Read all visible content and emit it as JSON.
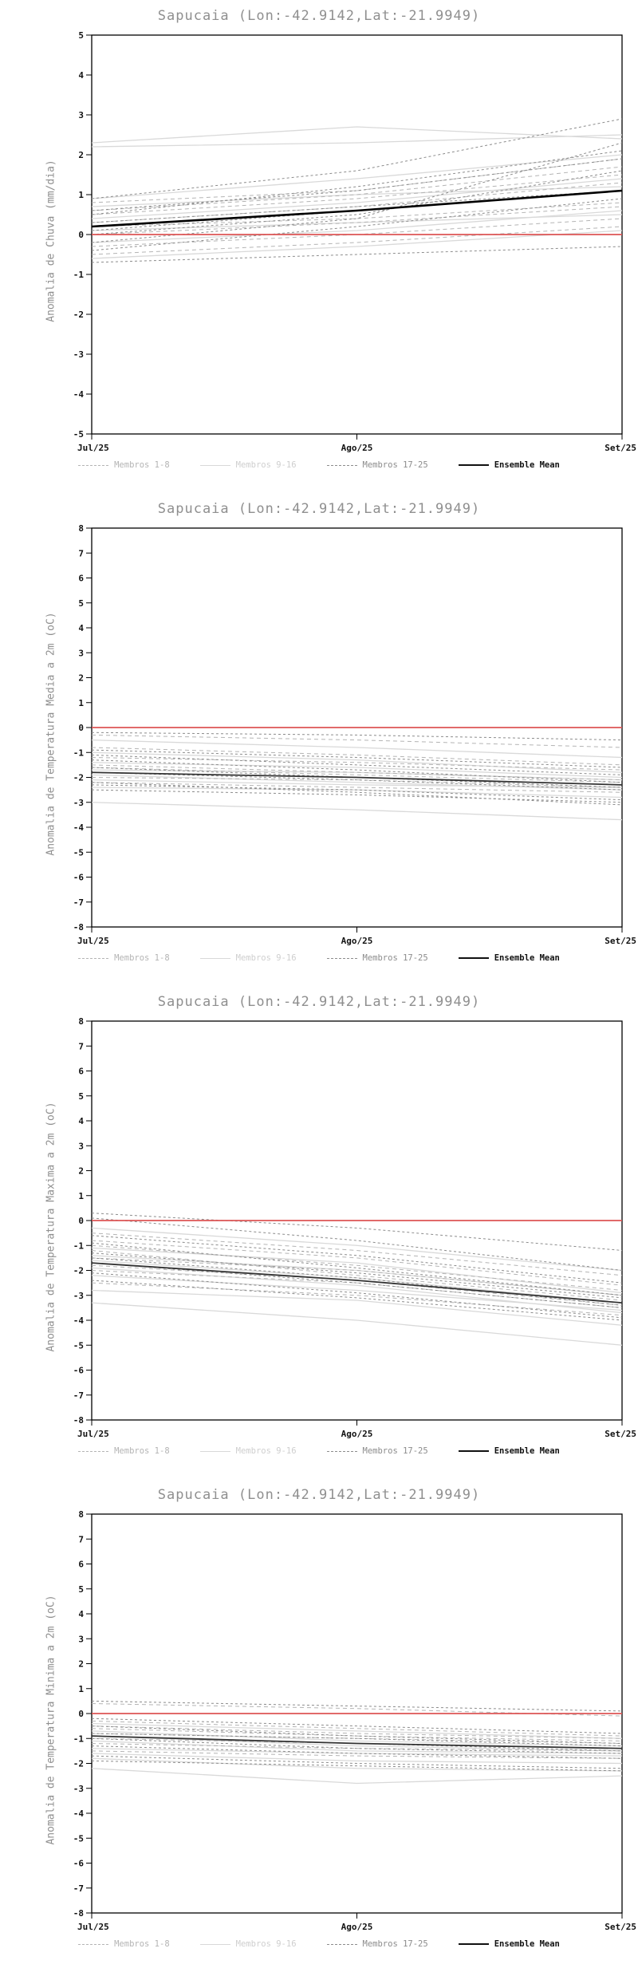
{
  "page": {
    "title": "Sapucaia (Lon:-42.9142,Lat:-21.9949)"
  },
  "x_axis": {
    "labels": [
      "Jul/25",
      "Ago/25",
      "Set/25"
    ]
  },
  "legend": {
    "items": [
      {
        "label": "Membros 1-8",
        "style": "members_1_8"
      },
      {
        "label": "Membros 9-16",
        "style": "members_9_16"
      },
      {
        "label": "Membros 17-25",
        "style": "members_17_25"
      },
      {
        "label": "Ensemble Mean",
        "style": "ensemble_mean"
      }
    ]
  },
  "line_styles": {
    "members_1_8": {
      "color": "#b4b4b4",
      "dash": "5 4",
      "width": 1,
      "label_color": "#b4b4b4"
    },
    "members_9_16": {
      "color": "#d9d9d9",
      "dash": "",
      "width": 1.3,
      "label_color": "#cfcfcf"
    },
    "members_17_25": {
      "color": "#8c8c8c",
      "dash": "3 3",
      "width": 1,
      "label_color": "#8c8c8c"
    },
    "ensemble_mean": {
      "color": "#111111",
      "dash": "",
      "width": 2.2,
      "label_color": "#111111"
    },
    "zero_line": {
      "color": "#dd5555",
      "width": 1.8
    }
  },
  "chart_data": [
    {
      "type": "line",
      "title": "Sapucaia (Lon:-42.9142,Lat:-21.9949)",
      "ylabel": "Anomalia de Chuva (mm/dia)",
      "ylim": [
        -5,
        5
      ],
      "ytick_step": 1,
      "x": [
        "Jul/25",
        "Ago/25",
        "Set/25"
      ],
      "zero_line": 0,
      "mean_color": "#000000",
      "mean_width": 2.6,
      "ensemble_mean": [
        0.2,
        0.6,
        1.1
      ],
      "members": [
        {
          "group": "members_1_8",
          "values": [
            0.5,
            0.9,
            1.5
          ]
        },
        {
          "group": "members_1_8",
          "values": [
            0.2,
            0.4,
            0.8
          ]
        },
        {
          "group": "members_1_8",
          "values": [
            -0.3,
            0.0,
            0.4
          ]
        },
        {
          "group": "members_1_8",
          "values": [
            0.8,
            1.1,
            1.9
          ]
        },
        {
          "group": "members_1_8",
          "values": [
            -0.5,
            -0.2,
            0.2
          ]
        },
        {
          "group": "members_1_8",
          "values": [
            0.3,
            0.7,
            1.3
          ]
        },
        {
          "group": "members_1_8",
          "values": [
            0.0,
            0.3,
            0.7
          ]
        },
        {
          "group": "members_1_8",
          "values": [
            0.6,
            1.0,
            1.7
          ]
        },
        {
          "group": "members_9_16",
          "values": [
            2.2,
            2.3,
            2.5
          ]
        },
        {
          "group": "members_9_16",
          "values": [
            2.3,
            2.7,
            2.4
          ]
        },
        {
          "group": "members_9_16",
          "values": [
            0.9,
            1.4,
            2.0
          ]
        },
        {
          "group": "members_9_16",
          "values": [
            -0.6,
            -0.3,
            0.1
          ]
        },
        {
          "group": "members_9_16",
          "values": [
            0.4,
            0.8,
            1.4
          ]
        },
        {
          "group": "members_9_16",
          "values": [
            0.1,
            0.3,
            0.5
          ]
        },
        {
          "group": "members_9_16",
          "values": [
            -0.2,
            0.1,
            0.6
          ]
        },
        {
          "group": "members_9_16",
          "values": [
            0.7,
            1.0,
            1.2
          ]
        },
        {
          "group": "members_17_25",
          "values": [
            -0.7,
            -0.5,
            -0.3
          ]
        },
        {
          "group": "members_17_25",
          "values": [
            0.1,
            0.6,
            1.1
          ]
        },
        {
          "group": "members_17_25",
          "values": [
            0.5,
            1.2,
            2.1
          ]
        },
        {
          "group": "members_17_25",
          "values": [
            -0.4,
            0.2,
            0.9
          ]
        },
        {
          "group": "members_17_25",
          "values": [
            0.9,
            1.6,
            2.9
          ]
        },
        {
          "group": "members_17_25",
          "values": [
            0.3,
            0.7,
            1.1
          ]
        },
        {
          "group": "members_17_25",
          "values": [
            0.0,
            0.5,
            1.6
          ]
        },
        {
          "group": "members_17_25",
          "values": [
            -0.2,
            0.4,
            2.3
          ]
        },
        {
          "group": "members_17_25",
          "values": [
            0.6,
            1.1,
            1.9
          ]
        }
      ]
    },
    {
      "type": "line",
      "title": "Sapucaia (Lon:-42.9142,Lat:-21.9949)",
      "ylabel": "Anomalia de Temperatura Media a 2m (oC)",
      "ylim": [
        -8,
        8
      ],
      "ytick_step": 1,
      "x": [
        "Jul/25",
        "Ago/25",
        "Set/25"
      ],
      "zero_line": 0,
      "mean_color": "#333333",
      "mean_width": 1.8,
      "ensemble_mean": [
        -1.8,
        -2.0,
        -2.3
      ],
      "members": [
        {
          "group": "members_1_8",
          "values": [
            -0.3,
            -0.5,
            -0.8
          ]
        },
        {
          "group": "members_1_8",
          "values": [
            -1.2,
            -1.4,
            -1.7
          ]
        },
        {
          "group": "members_1_8",
          "values": [
            -1.8,
            -2.0,
            -2.3
          ]
        },
        {
          "group": "members_1_8",
          "values": [
            -2.2,
            -2.4,
            -2.6
          ]
        },
        {
          "group": "members_1_8",
          "values": [
            -1.5,
            -1.8,
            -2.1
          ]
        },
        {
          "group": "members_1_8",
          "values": [
            -0.8,
            -1.1,
            -1.5
          ]
        },
        {
          "group": "members_1_8",
          "values": [
            -2.0,
            -2.1,
            -2.4
          ]
        },
        {
          "group": "members_1_8",
          "values": [
            -1.6,
            -1.9,
            -2.2
          ]
        },
        {
          "group": "members_9_16",
          "values": [
            -3.0,
            -3.3,
            -3.7
          ]
        },
        {
          "group": "members_9_16",
          "values": [
            -1.0,
            -1.3,
            -1.8
          ]
        },
        {
          "group": "members_9_16",
          "values": [
            -2.4,
            -2.5,
            -2.8
          ]
        },
        {
          "group": "members_9_16",
          "values": [
            -1.4,
            -1.6,
            -2.0
          ]
        },
        {
          "group": "members_9_16",
          "values": [
            -0.5,
            -0.8,
            -1.2
          ]
        },
        {
          "group": "members_9_16",
          "values": [
            -1.9,
            -2.2,
            -2.5
          ]
        },
        {
          "group": "members_9_16",
          "values": [
            -2.1,
            -2.3,
            -2.4
          ]
        },
        {
          "group": "members_9_16",
          "values": [
            -1.7,
            -1.8,
            -2.1
          ]
        },
        {
          "group": "members_17_25",
          "values": [
            -0.2,
            -0.3,
            -0.5
          ]
        },
        {
          "group": "members_17_25",
          "values": [
            -1.1,
            -1.5,
            -1.9
          ]
        },
        {
          "group": "members_17_25",
          "values": [
            -2.3,
            -2.5,
            -2.9
          ]
        },
        {
          "group": "members_17_25",
          "values": [
            -1.3,
            -1.7,
            -2.2
          ]
        },
        {
          "group": "members_17_25",
          "values": [
            -2.5,
            -2.7,
            -3.0
          ]
        },
        {
          "group": "members_17_25",
          "values": [
            -1.6,
            -2.0,
            -2.4
          ]
        },
        {
          "group": "members_17_25",
          "values": [
            -0.9,
            -1.2,
            -1.6
          ]
        },
        {
          "group": "members_17_25",
          "values": [
            -2.2,
            -2.6,
            -3.1
          ]
        },
        {
          "group": "members_17_25",
          "values": [
            -1.8,
            -2.1,
            -2.5
          ]
        }
      ]
    },
    {
      "type": "line",
      "title": "Sapucaia (Lon:-42.9142,Lat:-21.9949)",
      "ylabel": "Anomalia de Temperatura Maxima a 2m (oC)",
      "ylim": [
        -8,
        8
      ],
      "ytick_step": 1,
      "x": [
        "Jul/25",
        "Ago/25",
        "Set/25"
      ],
      "zero_line": 0,
      "mean_color": "#333333",
      "mean_width": 1.8,
      "ensemble_mean": [
        -1.7,
        -2.4,
        -3.3
      ],
      "members": [
        {
          "group": "members_1_8",
          "values": [
            -0.5,
            -1.2,
            -2.2
          ]
        },
        {
          "group": "members_1_8",
          "values": [
            -1.5,
            -2.0,
            -3.0
          ]
        },
        {
          "group": "members_1_8",
          "values": [
            -2.0,
            -2.5,
            -3.5
          ]
        },
        {
          "group": "members_1_8",
          "values": [
            -1.0,
            -1.8,
            -2.8
          ]
        },
        {
          "group": "members_1_8",
          "values": [
            -2.5,
            -3.0,
            -3.8
          ]
        },
        {
          "group": "members_1_8",
          "values": [
            -1.2,
            -2.2,
            -3.2
          ]
        },
        {
          "group": "members_1_8",
          "values": [
            -1.8,
            -2.4,
            -3.4
          ]
        },
        {
          "group": "members_1_8",
          "values": [
            -0.8,
            -1.5,
            -2.6
          ]
        },
        {
          "group": "members_9_16",
          "values": [
            -3.3,
            -4.0,
            -5.0
          ]
        },
        {
          "group": "members_9_16",
          "values": [
            -2.8,
            -3.2,
            -4.2
          ]
        },
        {
          "group": "members_9_16",
          "values": [
            -0.3,
            -1.0,
            -2.0
          ]
        },
        {
          "group": "members_9_16",
          "values": [
            -1.6,
            -2.3,
            -3.3
          ]
        },
        {
          "group": "members_9_16",
          "values": [
            -2.2,
            -2.8,
            -3.6
          ]
        },
        {
          "group": "members_9_16",
          "values": [
            -1.4,
            -2.0,
            -3.0
          ]
        },
        {
          "group": "members_9_16",
          "values": [
            -1.9,
            -2.6,
            -3.7
          ]
        },
        {
          "group": "members_9_16",
          "values": [
            -1.1,
            -1.7,
            -2.9
          ]
        },
        {
          "group": "members_17_25",
          "values": [
            0.3,
            -0.3,
            -1.2
          ]
        },
        {
          "group": "members_17_25",
          "values": [
            0.1,
            -0.8,
            -2.0
          ]
        },
        {
          "group": "members_17_25",
          "values": [
            -0.6,
            -1.4,
            -2.5
          ]
        },
        {
          "group": "members_17_25",
          "values": [
            -1.3,
            -2.1,
            -3.1
          ]
        },
        {
          "group": "members_17_25",
          "values": [
            -2.4,
            -3.1,
            -4.0
          ]
        },
        {
          "group": "members_17_25",
          "values": [
            -1.7,
            -2.5,
            -3.5
          ]
        },
        {
          "group": "members_17_25",
          "values": [
            -2.1,
            -2.9,
            -3.9
          ]
        },
        {
          "group": "members_17_25",
          "values": [
            -0.9,
            -1.9,
            -3.0
          ]
        },
        {
          "group": "members_17_25",
          "values": [
            -1.5,
            -2.3,
            -3.4
          ]
        }
      ]
    },
    {
      "type": "line",
      "title": "Sapucaia (Lon:-42.9142,Lat:-21.9949)",
      "ylabel": "Anomalia de Temperatura Minima a 2m (oC)",
      "ylim": [
        -8,
        8
      ],
      "ytick_step": 1,
      "x": [
        "Jul/25",
        "Ago/25",
        "Set/25"
      ],
      "zero_line": 0,
      "mean_color": "#333333",
      "mean_width": 1.8,
      "ensemble_mean": [
        -0.9,
        -1.2,
        -1.4
      ],
      "members": [
        {
          "group": "members_1_8",
          "values": [
            0.4,
            0.2,
            -0.1
          ]
        },
        {
          "group": "members_1_8",
          "values": [
            -0.5,
            -0.8,
            -1.0
          ]
        },
        {
          "group": "members_1_8",
          "values": [
            -1.2,
            -1.4,
            -1.5
          ]
        },
        {
          "group": "members_1_8",
          "values": [
            -0.8,
            -1.0,
            -1.2
          ]
        },
        {
          "group": "members_1_8",
          "values": [
            -1.5,
            -1.7,
            -1.8
          ]
        },
        {
          "group": "members_1_8",
          "values": [
            -0.3,
            -0.6,
            -0.9
          ]
        },
        {
          "group": "members_1_8",
          "values": [
            -1.0,
            -1.2,
            -1.4
          ]
        },
        {
          "group": "members_1_8",
          "values": [
            -0.6,
            -0.9,
            -1.1
          ]
        },
        {
          "group": "members_9_16",
          "values": [
            -2.2,
            -2.8,
            -2.5
          ]
        },
        {
          "group": "members_9_16",
          "values": [
            -1.8,
            -2.2,
            -2.3
          ]
        },
        {
          "group": "members_9_16",
          "values": [
            -0.9,
            -1.3,
            -1.5
          ]
        },
        {
          "group": "members_9_16",
          "values": [
            -1.4,
            -1.6,
            -1.7
          ]
        },
        {
          "group": "members_9_16",
          "values": [
            -0.4,
            -0.7,
            -1.0
          ]
        },
        {
          "group": "members_9_16",
          "values": [
            -1.1,
            -1.5,
            -1.6
          ]
        },
        {
          "group": "members_9_16",
          "values": [
            -1.6,
            -1.9,
            -2.0
          ]
        },
        {
          "group": "members_9_16",
          "values": [
            -0.7,
            -1.1,
            -1.3
          ]
        },
        {
          "group": "members_17_25",
          "values": [
            0.5,
            0.3,
            0.1
          ]
        },
        {
          "group": "members_17_25",
          "values": [
            -0.2,
            -0.5,
            -0.8
          ]
        },
        {
          "group": "members_17_25",
          "values": [
            -1.3,
            -1.6,
            -1.8
          ]
        },
        {
          "group": "members_17_25",
          "values": [
            -0.9,
            -1.2,
            -1.5
          ]
        },
        {
          "group": "members_17_25",
          "values": [
            -1.7,
            -2.0,
            -2.2
          ]
        },
        {
          "group": "members_17_25",
          "values": [
            -0.5,
            -0.9,
            -1.2
          ]
        },
        {
          "group": "members_17_25",
          "values": [
            -1.9,
            -2.1,
            -2.3
          ]
        },
        {
          "group": "members_17_25",
          "values": [
            -1.0,
            -1.4,
            -1.6
          ]
        },
        {
          "group": "members_17_25",
          "values": [
            -0.8,
            -1.0,
            -1.3
          ]
        }
      ]
    }
  ]
}
